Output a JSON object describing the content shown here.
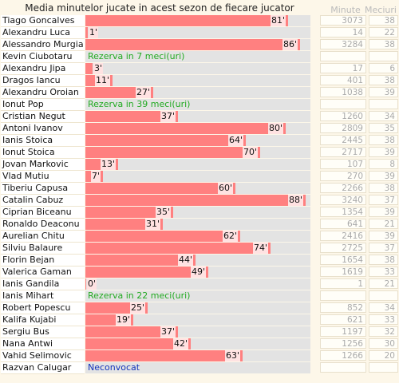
{
  "title": "Media minutelor jucate in acest sezon de fiecare jucator",
  "columns": {
    "minutes": "Minute",
    "matches": "Meciuri"
  },
  "chart_data": {
    "type": "bar",
    "orientation": "horizontal",
    "title": "Media minutelor jucate in acest sezon de fiecare jucator",
    "xlim": [
      0,
      90
    ],
    "unit_suffix": "'",
    "bar_color": "#ff8080",
    "track_color": "#e3e3e3",
    "rows": [
      {
        "name": "Tiago Goncalves",
        "avg": 81,
        "label": "81'",
        "minutes": "3073",
        "matches": "38"
      },
      {
        "name": "Alexandru Luca",
        "avg": 1,
        "label": "1'",
        "minutes": "14",
        "matches": "22"
      },
      {
        "name": "Alessandro Murgia",
        "avg": 86,
        "label": "86'",
        "minutes": "3284",
        "matches": "38"
      },
      {
        "name": "Kevin Ciubotaru",
        "note": "Rezerva in 7 meci(uri)",
        "minutes": "",
        "matches": ""
      },
      {
        "name": "Alexandru Jipa",
        "avg": 3,
        "label": "3'",
        "minutes": "17",
        "matches": "6"
      },
      {
        "name": "Dragos Iancu",
        "avg": 11,
        "label": "11'",
        "minutes": "401",
        "matches": "38"
      },
      {
        "name": "Alexandru Oroian",
        "avg": 27,
        "label": "27'",
        "minutes": "1038",
        "matches": "39"
      },
      {
        "name": "Ionut Pop",
        "note": "Rezerva in 39 meci(uri)",
        "minutes": "",
        "matches": ""
      },
      {
        "name": "Cristian Negut",
        "avg": 37,
        "label": "37'",
        "minutes": "1260",
        "matches": "34"
      },
      {
        "name": "Antoni Ivanov",
        "avg": 80,
        "label": "80'",
        "minutes": "2809",
        "matches": "35"
      },
      {
        "name": "Ianis Stoica",
        "avg": 64,
        "label": "64'",
        "minutes": "2445",
        "matches": "38"
      },
      {
        "name": "Ionut Stoica",
        "avg": 70,
        "label": "70'",
        "minutes": "2717",
        "matches": "39"
      },
      {
        "name": "Jovan Markovic",
        "avg": 13,
        "label": "13'",
        "minutes": "107",
        "matches": "8"
      },
      {
        "name": "Vlad Mutiu",
        "avg": 7,
        "label": "7'",
        "minutes": "270",
        "matches": "39"
      },
      {
        "name": "Tiberiu Capusa",
        "avg": 60,
        "label": "60'",
        "minutes": "2266",
        "matches": "38"
      },
      {
        "name": "Catalin Cabuz",
        "avg": 88,
        "label": "88'",
        "minutes": "3240",
        "matches": "37"
      },
      {
        "name": "Ciprian Biceanu",
        "avg": 35,
        "label": "35'",
        "minutes": "1354",
        "matches": "39"
      },
      {
        "name": "Ronaldo Deaconu",
        "avg": 31,
        "label": "31'",
        "minutes": "641",
        "matches": "21"
      },
      {
        "name": "Aurelian Chitu",
        "avg": 62,
        "label": "62'",
        "minutes": "2416",
        "matches": "39"
      },
      {
        "name": "Silviu Balaure",
        "avg": 74,
        "label": "74'",
        "minutes": "2725",
        "matches": "37"
      },
      {
        "name": "Florin Bejan",
        "avg": 44,
        "label": "44'",
        "minutes": "1654",
        "matches": "38"
      },
      {
        "name": "Valerica Gaman",
        "avg": 49,
        "label": "49'",
        "minutes": "1619",
        "matches": "33"
      },
      {
        "name": "Ianis Gandila",
        "avg": 0,
        "label": "0'",
        "minutes": "1",
        "matches": "21"
      },
      {
        "name": "Ianis Mihart",
        "note": "Rezerva in 22 meci(uri)",
        "minutes": "",
        "matches": ""
      },
      {
        "name": "Robert Popescu",
        "avg": 25,
        "label": "25'",
        "minutes": "852",
        "matches": "34"
      },
      {
        "name": "Kalifa Kujabi",
        "avg": 19,
        "label": "19'",
        "minutes": "621",
        "matches": "33"
      },
      {
        "name": "Sergiu Bus",
        "avg": 37,
        "label": "37'",
        "minutes": "1197",
        "matches": "32"
      },
      {
        "name": "Nana Antwi",
        "avg": 42,
        "label": "42'",
        "minutes": "1256",
        "matches": "30"
      },
      {
        "name": "Vahid Selimovic",
        "avg": 63,
        "label": "63'",
        "minutes": "1266",
        "matches": "20"
      },
      {
        "name": "Razvan Calugar",
        "note": "Neconvocat",
        "note_color": "blue",
        "minutes": "",
        "matches": ""
      }
    ]
  }
}
